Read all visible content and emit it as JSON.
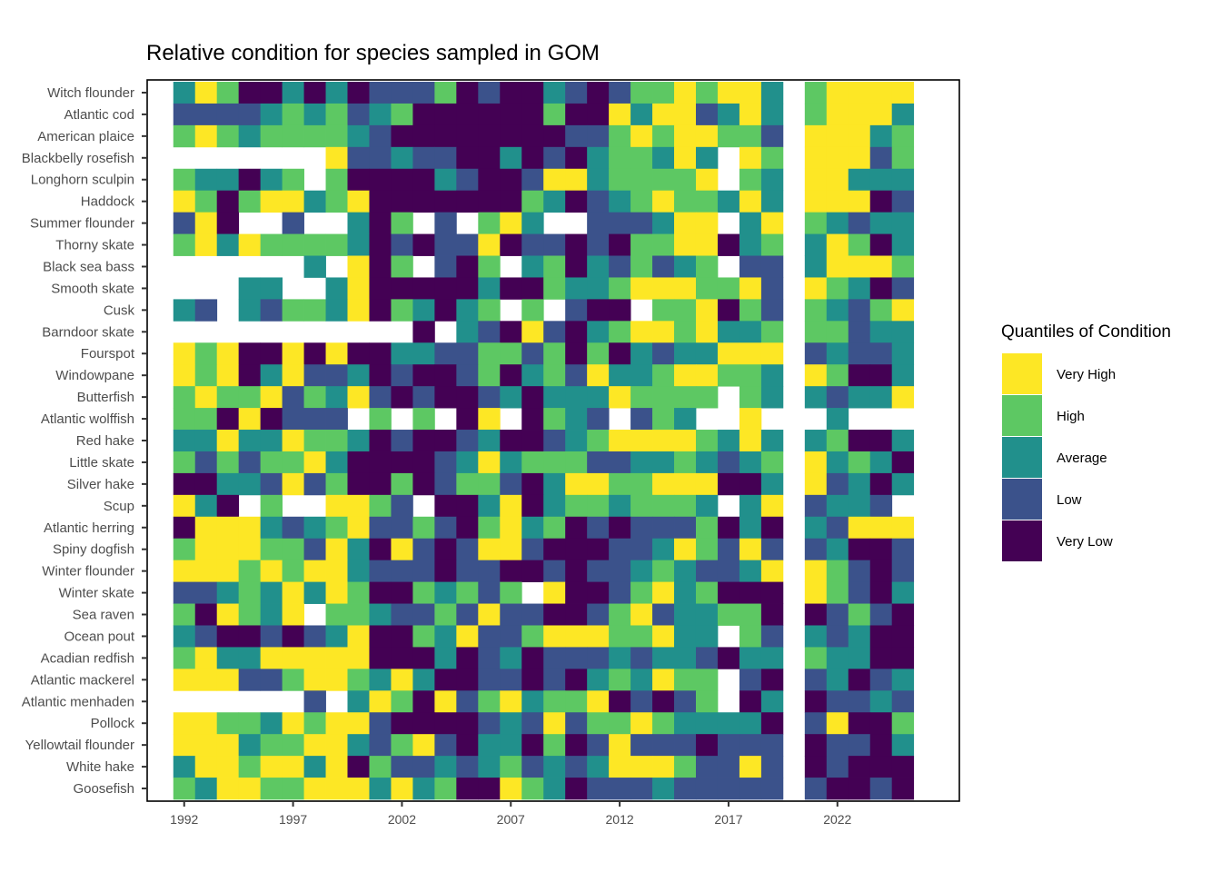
{
  "chart_data": {
    "type": "heatmap",
    "title": "Relative condition for species sampled in GOM",
    "xlabel": "",
    "ylabel": "",
    "x_ticks": [
      "1992",
      "1997",
      "2002",
      "2007",
      "2012",
      "2017",
      "2022"
    ],
    "x_tick_values": [
      1992,
      1997,
      2002,
      2007,
      2012,
      2017,
      2022
    ],
    "xlim": [
      1990.3,
      2027.6
    ],
    "years": [
      1992,
      1993,
      1994,
      1995,
      1996,
      1997,
      1998,
      1999,
      2000,
      2001,
      2002,
      2003,
      2004,
      2005,
      2006,
      2007,
      2008,
      2009,
      2010,
      2011,
      2012,
      2013,
      2014,
      2015,
      2016,
      2017,
      2018,
      2019,
      2020,
      2021,
      2022,
      2023,
      2024,
      2025
    ],
    "legend": {
      "title": "Quantiles of Condition",
      "position": "right",
      "categories": [
        {
          "code": "Y",
          "label": "Very High",
          "color": "#FDE725"
        },
        {
          "code": "G",
          "label": "High",
          "color": "#5DC863"
        },
        {
          "code": "T",
          "label": "Average",
          "color": "#21908C"
        },
        {
          "code": "B",
          "label": "Low",
          "color": "#3B528B"
        },
        {
          "code": "P",
          "label": "Very Low",
          "color": "#440154"
        }
      ],
      "missing_code": "W"
    },
    "species": [
      {
        "name": "Witch flounder",
        "values": "TYGPPTPTPBBBGPBPPTBPBGGYGYYTWGYYYY"
      },
      {
        "name": "Atlantic cod",
        "values": "BBBBTGTGBTGPPPPPPGPPYTYYBTYTWGYYYT"
      },
      {
        "name": "American plaice",
        "values": "GYGTGGGGTBPPPPPPPPBBGYGYYGGBWYYYTG"
      },
      {
        "name": "Blackbelly rosefish",
        "values": "WWWWWWWYBBTBBPPTPBPTGGTYTWYGWYYYBG"
      },
      {
        "name": "Longhorn sculpin",
        "values": "GTTPTGWGPPPPTBPPBYYTGGGGYWGTWYYTTT"
      },
      {
        "name": "Haddock",
        "values": "YGPGYYTGYPPPPPPPGTPBTGYGGTYTWYYYPB"
      },
      {
        "name": "Summer flounder",
        "values": "BYPWWBWWTPGWBWGYTWWBBBTYYWTYWGTBTT"
      },
      {
        "name": "Thorny skate",
        "values": "GYTYGGGGTPBPBBYPBBPBPGGYYPTGWTYGPT"
      },
      {
        "name": "Black sea bass",
        "values": "WWWWWWTWYPGWBPGWTGPTBGBTGWBBWTYYYG"
      },
      {
        "name": "Smooth skate",
        "values": "WWWTTWWTYPPPPPTPPGTTGYYYGGYBWYGTPB"
      },
      {
        "name": "Cusk",
        "values": "TBWTBGGTYPGTPTGWGWBPPWGGYPGBWGTBGY"
      },
      {
        "name": "Barndoor skate",
        "values": "WWWWWWWWWWWPWTBPYBPTGYYGYTTGWGGBTT"
      },
      {
        "name": "Fourspot",
        "values": "YGYPPYPYPPTTBBGGBGPGPTBTTYYYWBTBBT"
      },
      {
        "name": "Windowpane",
        "values": "YGYPTYBBTPBPPBGPTGBYTTGYYGGTWYGPPT"
      },
      {
        "name": "Butterfish",
        "values": "GYGGYBGTYBPBPPBTPTTTYGGGGWGTWTBTTY"
      },
      {
        "name": "Atlantic wolffish",
        "values": "GGPYPBBBWGWGWPYWPGTBWBGTWWYWWWTWWW"
      },
      {
        "name": "Red hake",
        "values": "TTYTTYGGTPBPPBTPPBTGYYYYGTYTWTGPPT"
      },
      {
        "name": "Little skate",
        "values": "GBGBGGYTPPPPBTYTGGGBBTTGTBTGWYTGTP"
      },
      {
        "name": "Silver hake",
        "values": "PPTTBYBGPPGPBGGBPTYYGGYYYPPTWYBTPT"
      },
      {
        "name": "Scup",
        "values": "YTPWGWWYYGBWPPTYPTGGTGGGTWTYWBTTBW"
      },
      {
        "name": "Atlantic herring",
        "values": "PYYYTBTGYBBGBPGYTGPBPBBBGPTPWTBYYY"
      },
      {
        "name": "Spiny dogfish",
        "values": "GYYYGGBYTPYBPBYYBPPPBBTYGBYBWBTPPB"
      },
      {
        "name": "Winter flounder",
        "values": "YYYGYGYYTBBBPBBPPBPBBTGTBBTYWYGBPB"
      },
      {
        "name": "Winter skate",
        "values": "BBTGTYTYGPPGTGBGWYPPBGYTGPPPWYGBPT"
      },
      {
        "name": "Sea raven",
        "values": "GPYGTYWGGTBBGBYBBPPBGYBTTGGPWPBGBP"
      },
      {
        "name": "Ocean pout",
        "values": "TBPPBPBTYPPGTYBBGYYYGGYTTWGBWTBTPP"
      },
      {
        "name": "Acadian redfish",
        "values": "GYTTYYYYYPPPTPBTPBBBTBTTBPTTWGTTPP"
      },
      {
        "name": "Atlantic mackerel",
        "values": "YYYBBGYYGTYTPPBBPBPTGTYGGWBPWBTPBT"
      },
      {
        "name": "Atlantic menhaden",
        "values": "WWWWWWBWTYGPYBGYTGGYPBPBGWPTWPBBTB"
      },
      {
        "name": "Pollock",
        "values": "YYGGTYGYYBPPPPBTBYBGGYGTTTTPWBYPPG"
      },
      {
        "name": "Yellowtail flounder",
        "values": "YYYTGGYYTBGYBPTTPGPBYBBBPBBBWPBBPT"
      },
      {
        "name": "White hake",
        "values": "TYYGYYTYPGBBTBTGBTBTYYYGBBYBWPBPPP"
      },
      {
        "name": "Goosefish",
        "values": "GTYYGGYYYTYTGPPYGTPBBBTBBBBBWBPPBP"
      }
    ]
  }
}
